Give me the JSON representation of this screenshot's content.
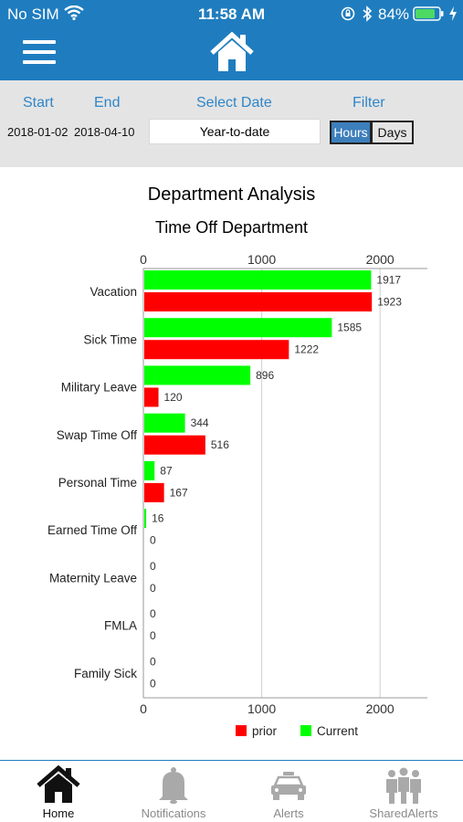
{
  "status_bar": {
    "carrier": "No SIM",
    "time": "11:58 AM",
    "battery_percent": "84%",
    "battery_level": 0.84
  },
  "filters": {
    "start_label": "Start",
    "end_label": "End",
    "select_date_label": "Select Date",
    "filter_label": "Filter",
    "start_value": "2018-01-02",
    "end_value": "2018-04-10",
    "period_value": "Year-to-date",
    "hours_label": "Hours",
    "days_label": "Days",
    "selected_unit": "Hours"
  },
  "chart_data": {
    "type": "bar",
    "orientation": "horizontal",
    "title": "Department Analysis",
    "subtitle": "Time Off Department",
    "categories": [
      "Vacation",
      "Sick Time",
      "Military Leave",
      "Swap Time Off",
      "Personal Time",
      "Earned Time Off",
      "Maternity Leave",
      "FMLA",
      "Family Sick"
    ],
    "series": [
      {
        "name": "Current",
        "color": "#00ff00",
        "values": [
          1917,
          1585,
          896,
          344,
          87,
          16,
          0,
          0,
          0
        ]
      },
      {
        "name": "prior",
        "color": "#ff0000",
        "values": [
          1923,
          1222,
          120,
          516,
          167,
          0,
          0,
          0,
          0
        ]
      }
    ],
    "xlim": [
      0,
      2400
    ],
    "ticks": [
      0,
      1000,
      2000
    ],
    "tick_labels": [
      "0",
      "1000",
      "2000"
    ],
    "grid": true,
    "axis_position": "top and bottom",
    "legend": [
      {
        "name": "prior",
        "color": "#ff0000"
      },
      {
        "name": "Current",
        "color": "#00ff00"
      }
    ],
    "legend_position": "bottom"
  },
  "tabs": [
    {
      "label": "Home",
      "icon": "home-icon",
      "active": true
    },
    {
      "label": "Notifications",
      "icon": "bell-icon",
      "active": false
    },
    {
      "label": "Alerts",
      "icon": "police-car-icon",
      "active": false
    },
    {
      "label": "SharedAlerts",
      "icon": "people-icon",
      "active": false
    }
  ]
}
